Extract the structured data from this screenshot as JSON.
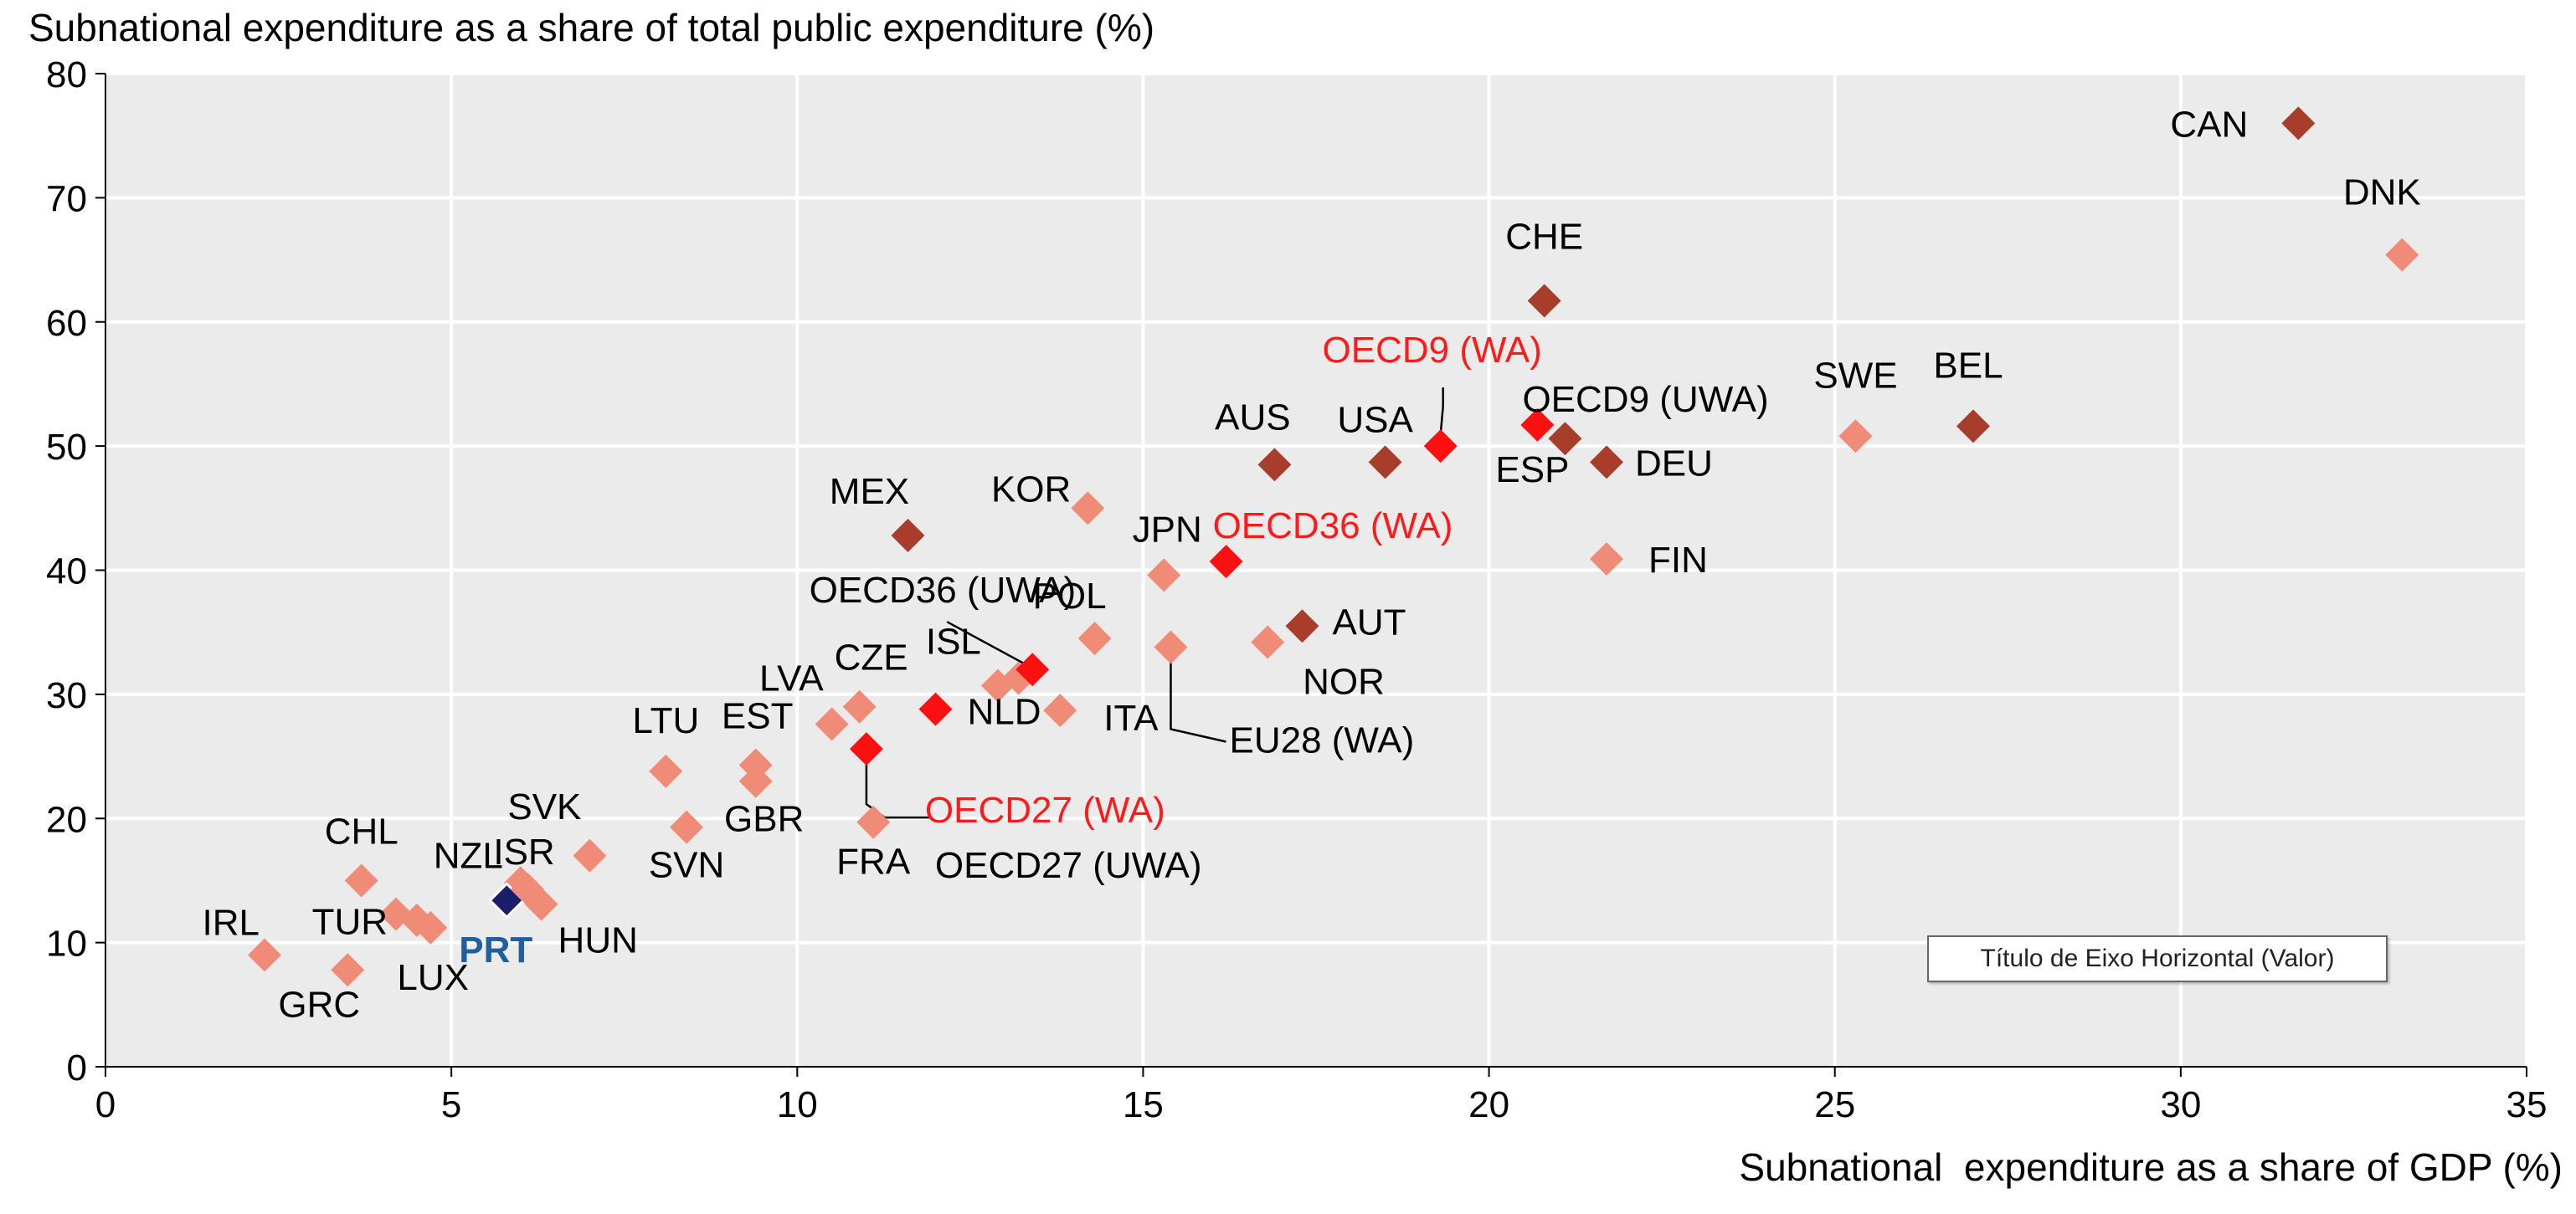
{
  "colors": {
    "plot_bg": "#ebebeb",
    "grid": "#ffffff",
    "light": "#f08b77",
    "dark": "#a93d2b",
    "wa": "#ff1010",
    "prt": "#1b1f6b",
    "prt_label": "#1f5f9e",
    "wa_label": "#ff1a1a"
  },
  "tooltip": "Título de Eixo Horizontal (Valor)",
  "chart_data": {
    "type": "scatter",
    "title": "",
    "xlabel": "Subnational  expenditure as a share of GDP (%)",
    "ylabel": "Subnational expenditure as a share of total public expenditure (%)",
    "xlim": [
      0,
      35
    ],
    "ylim": [
      0,
      80
    ],
    "xticks": [
      0,
      5,
      10,
      15,
      20,
      25,
      30,
      35
    ],
    "yticks": [
      0,
      10,
      20,
      30,
      40,
      50,
      60,
      70,
      80
    ],
    "grid": true,
    "points": [
      {
        "label": "IRL",
        "x": 2.3,
        "y": 9.0,
        "style": "light"
      },
      {
        "label": "GRC",
        "x": 3.5,
        "y": 7.8,
        "style": "light"
      },
      {
        "label": "TUR",
        "x": 4.2,
        "y": 12.3,
        "style": "light"
      },
      {
        "label": "",
        "x": 4.5,
        "y": 11.8,
        "style": "light"
      },
      {
        "label": "LUX",
        "x": 4.7,
        "y": 11.2,
        "style": "light"
      },
      {
        "label": "CHL",
        "x": 3.7,
        "y": 15.0,
        "style": "light"
      },
      {
        "label": "NZL",
        "x": 6.0,
        "y": 14.8,
        "style": "light"
      },
      {
        "label": "PRT",
        "x": 5.8,
        "y": 13.4,
        "style": "prt"
      },
      {
        "label": "ISR",
        "x": 6.1,
        "y": 14.3,
        "style": "light"
      },
      {
        "label": "HUN",
        "x": 6.3,
        "y": 13.1,
        "style": "light"
      },
      {
        "label": "SVK",
        "x": 7.0,
        "y": 17.0,
        "style": "light"
      },
      {
        "label": "SVN",
        "x": 8.4,
        "y": 19.3,
        "style": "light"
      },
      {
        "label": "LTU",
        "x": 8.1,
        "y": 23.8,
        "style": "light"
      },
      {
        "label": "EST",
        "x": 9.4,
        "y": 24.3,
        "style": "light"
      },
      {
        "label": "GBR",
        "x": 9.4,
        "y": 23.0,
        "style": "light"
      },
      {
        "label": "LVA",
        "x": 10.5,
        "y": 27.6,
        "style": "light"
      },
      {
        "label": "CZE",
        "x": 10.9,
        "y": 29.0,
        "style": "light"
      },
      {
        "label": "OECD27 (WA)",
        "x": 11.0,
        "y": 25.6,
        "style": "wa"
      },
      {
        "label": "OECD27 (UWA)",
        "x": 11.0,
        "y": 25.6,
        "style": "none"
      },
      {
        "label": "FRA",
        "x": 11.1,
        "y": 19.7,
        "style": "light"
      },
      {
        "label": "NLD",
        "x": 12.0,
        "y": 28.8,
        "style": "wa"
      },
      {
        "label": "ISL",
        "x": 12.9,
        "y": 30.7,
        "style": "light"
      },
      {
        "label": "",
        "x": 13.2,
        "y": 31.3,
        "style": "light"
      },
      {
        "label": "OECD36 (UWA)",
        "x": 13.4,
        "y": 32.0,
        "style": "wa"
      },
      {
        "label": "ITA",
        "x": 13.8,
        "y": 28.7,
        "style": "light"
      },
      {
        "label": "POL",
        "x": 14.3,
        "y": 34.5,
        "style": "light"
      },
      {
        "label": "KOR",
        "x": 14.2,
        "y": 45.0,
        "style": "light"
      },
      {
        "label": "MEX",
        "x": 11.6,
        "y": 42.8,
        "style": "dark"
      },
      {
        "label": "JPN",
        "x": 15.3,
        "y": 39.6,
        "style": "light"
      },
      {
        "label": "EU28 (WA)",
        "x": 15.4,
        "y": 33.8,
        "style": "light"
      },
      {
        "label": "OECD36 (WA)",
        "x": 16.2,
        "y": 40.7,
        "style": "wa"
      },
      {
        "label": "NOR",
        "x": 16.8,
        "y": 34.2,
        "style": "light"
      },
      {
        "label": "AUS",
        "x": 16.9,
        "y": 48.5,
        "style": "dark"
      },
      {
        "label": "AUT",
        "x": 17.3,
        "y": 35.5,
        "style": "dark"
      },
      {
        "label": "USA",
        "x": 18.5,
        "y": 48.7,
        "style": "dark"
      },
      {
        "label": "OECD9 (WA)",
        "x": 19.3,
        "y": 50.0,
        "style": "wa"
      },
      {
        "label": "ESP",
        "x": 20.7,
        "y": 51.7,
        "style": "wa"
      },
      {
        "label": "OECD9 (UWA)",
        "x": 21.1,
        "y": 50.6,
        "style": "dark"
      },
      {
        "label": "CHE",
        "x": 20.8,
        "y": 61.7,
        "style": "dark"
      },
      {
        "label": "DEU",
        "x": 21.7,
        "y": 48.7,
        "style": "dark"
      },
      {
        "label": "FIN",
        "x": 21.7,
        "y": 40.9,
        "style": "light"
      },
      {
        "label": "SWE",
        "x": 25.3,
        "y": 50.8,
        "style": "light"
      },
      {
        "label": "BEL",
        "x": 27.0,
        "y": 51.6,
        "style": "dark"
      },
      {
        "label": "CAN",
        "x": 31.7,
        "y": 76.0,
        "style": "dark"
      },
      {
        "label": "DNK",
        "x": 33.2,
        "y": 65.4,
        "style": "light"
      }
    ]
  }
}
